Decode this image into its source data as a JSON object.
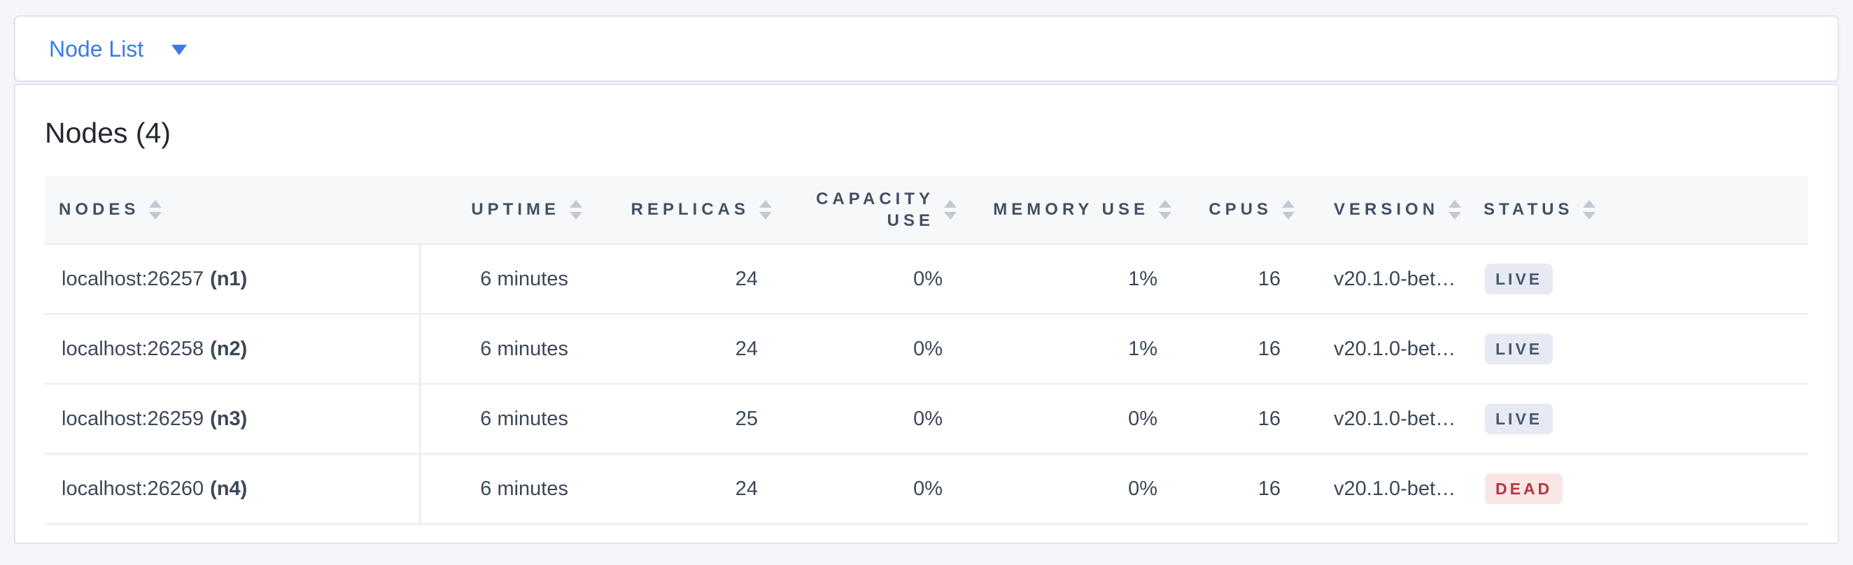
{
  "nav": {
    "dropdown_label": "Node List"
  },
  "summary": {
    "title": "Nodes (4)"
  },
  "table": {
    "columns": [
      {
        "label": "NODES",
        "align": "left"
      },
      {
        "label": "UPTIME",
        "align": "right"
      },
      {
        "label": "REPLICAS",
        "align": "right"
      },
      {
        "label": "CAPACITY USE",
        "align": "right"
      },
      {
        "label": "MEMORY USE",
        "align": "right"
      },
      {
        "label": "CPUS",
        "align": "right"
      },
      {
        "label": "VERSION",
        "align": "left"
      },
      {
        "label": "STATUS",
        "align": "left"
      }
    ],
    "rows": [
      {
        "node": "localhost:26257",
        "node_id": "(n1)",
        "uptime": "6 minutes",
        "replicas": "24",
        "capacity_use": "0%",
        "memory_use": "1%",
        "cpus": "16",
        "version": "v20.1.0-bet…",
        "status": "LIVE"
      },
      {
        "node": "localhost:26258",
        "node_id": "(n2)",
        "uptime": "6 minutes",
        "replicas": "24",
        "capacity_use": "0%",
        "memory_use": "1%",
        "cpus": "16",
        "version": "v20.1.0-bet…",
        "status": "LIVE"
      },
      {
        "node": "localhost:26259",
        "node_id": "(n3)",
        "uptime": "6 minutes",
        "replicas": "25",
        "capacity_use": "0%",
        "memory_use": "0%",
        "cpus": "16",
        "version": "v20.1.0-bet…",
        "status": "LIVE"
      },
      {
        "node": "localhost:26260",
        "node_id": "(n4)",
        "uptime": "6 minutes",
        "replicas": "24",
        "capacity_use": "0%",
        "memory_use": "0%",
        "cpus": "16",
        "version": "v20.1.0-bet…",
        "status": "DEAD"
      }
    ]
  },
  "colors": {
    "page_bg": "#F4F6FA",
    "accent_blue": "#3A7CE4",
    "live_badge_bg": "#E7EAF2",
    "live_badge_text": "#475872",
    "dead_badge_bg": "#F9E6E6",
    "dead_badge_text": "#B5363E"
  }
}
